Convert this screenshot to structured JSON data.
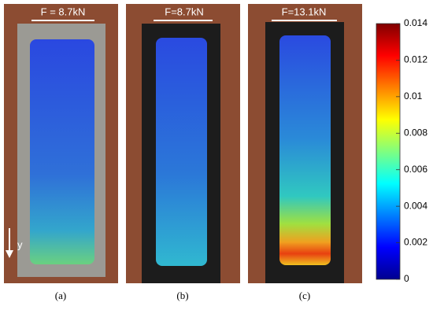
{
  "panels": [
    {
      "force_label": "F = 8.7kN",
      "caption": "(a)",
      "axis_label": "y"
    },
    {
      "force_label": "F=8.7kN",
      "caption": "(b)"
    },
    {
      "force_label": "F=13.1kN",
      "caption": "(c)"
    }
  ],
  "colorbar": {
    "ticks": [
      0.014,
      0.012,
      0.01,
      0.008,
      0.006,
      0.004,
      0.002,
      0
    ]
  }
}
